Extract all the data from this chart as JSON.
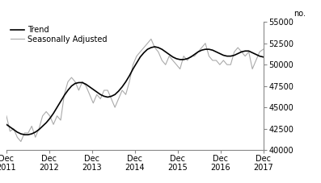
{
  "legend_labels": [
    "Trend",
    "Seasonally Adjusted"
  ],
  "trend_color": "#000000",
  "sa_color": "#aaaaaa",
  "ylabel": "no.",
  "ylim": [
    40000,
    55000
  ],
  "yticks": [
    40000,
    42500,
    45000,
    47500,
    50000,
    52500,
    55000
  ],
  "xtick_labels": [
    "Dec\n2011",
    "Dec\n2012",
    "Dec\n2013",
    "Dec\n2014",
    "Dec\n2015",
    "Dec\n2016",
    "Dec\n2017"
  ],
  "background_color": "#ffffff",
  "trend": [
    43000,
    42700,
    42400,
    42100,
    41900,
    41800,
    41800,
    41900,
    42100,
    42400,
    42800,
    43200,
    43700,
    44300,
    45000,
    45700,
    46400,
    47000,
    47500,
    47800,
    47900,
    47900,
    47700,
    47400,
    47100,
    46800,
    46500,
    46300,
    46200,
    46300,
    46500,
    46900,
    47400,
    48000,
    48700,
    49500,
    50200,
    50900,
    51400,
    51800,
    52000,
    52100,
    52000,
    51800,
    51500,
    51200,
    50900,
    50700,
    50600,
    50600,
    50700,
    50900,
    51200,
    51500,
    51700,
    51800,
    51800,
    51700,
    51500,
    51300,
    51100,
    51000,
    51000,
    51100,
    51300,
    51500,
    51600,
    51600,
    51400,
    51200,
    51000,
    50900
  ],
  "sa": [
    44000,
    42200,
    42500,
    41500,
    41000,
    42000,
    42000,
    42800,
    41500,
    42500,
    44000,
    44500,
    44000,
    43000,
    44000,
    43500,
    46500,
    48000,
    48500,
    48000,
    47000,
    48000,
    47500,
    46500,
    45500,
    46500,
    46000,
    47000,
    47000,
    46000,
    45000,
    46000,
    47000,
    46500,
    48000,
    50000,
    51000,
    51500,
    52000,
    52500,
    53000,
    52000,
    51500,
    50500,
    50000,
    51000,
    50500,
    50000,
    49500,
    51000,
    50500,
    51000,
    51000,
    51500,
    52000,
    52500,
    51000,
    50500,
    50500,
    50000,
    50500,
    50000,
    50000,
    51500,
    52000,
    51500,
    51000,
    51500,
    49500,
    50500,
    51500,
    51800
  ]
}
